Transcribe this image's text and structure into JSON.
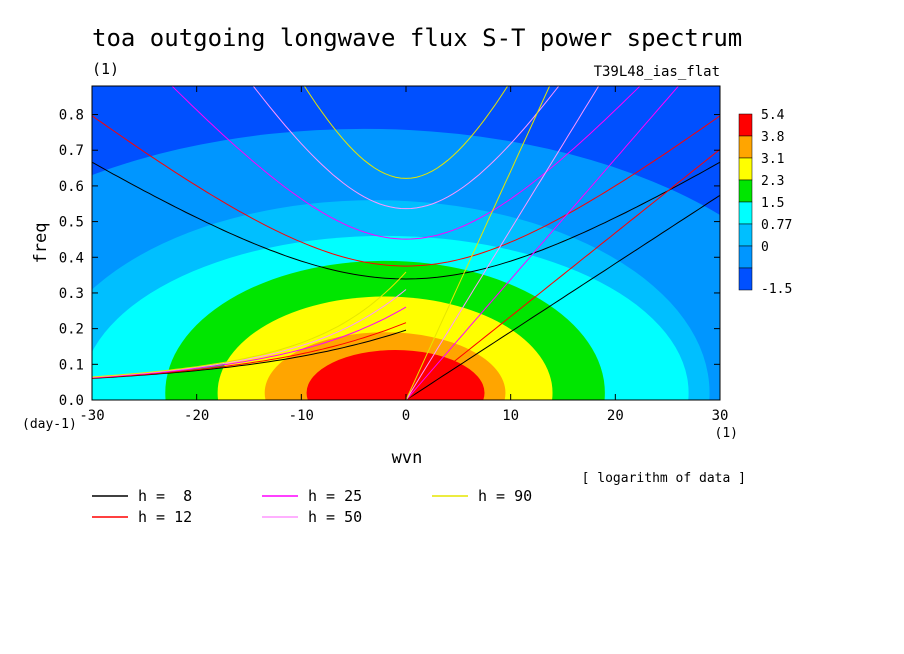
{
  "chart_data": {
    "type": "heatmap",
    "title": "toa outgoing longwave flux S-T power spectrum",
    "title_unit": "(1)",
    "subtitle": "T39L48_ias_flat",
    "xlabel": "wvn",
    "ylabel": "freq",
    "x_unit": "(1)",
    "y_unit": "(day-1)",
    "note": "[ logarithm of data ]",
    "xlim": [
      -30,
      30
    ],
    "ylim": [
      0,
      0.88
    ],
    "xticks": [
      -30,
      -20,
      -10,
      0,
      10,
      20,
      30
    ],
    "xtick_labels": [
      "-30",
      "-20",
      "-10",
      "0",
      "10",
      "20",
      "30"
    ],
    "yticks": [
      0,
      0.1,
      0.2,
      0.3,
      0.4,
      0.5,
      0.6,
      0.7,
      0.8
    ],
    "ytick_labels": [
      "0.0",
      "0.1",
      "0.2",
      "0.3",
      "0.4",
      "0.5",
      "0.6",
      "0.7",
      "0.8"
    ],
    "colorbar": {
      "levels": [
        "5.4",
        "3.8",
        "3.1",
        "2.3",
        "1.5",
        "0.77",
        "0",
        "-1.5"
      ],
      "colors": [
        "#ff0000",
        "#ffa500",
        "#ffff00",
        "#00e600",
        "#00ffff",
        "#00bfff",
        "#0096ff",
        "#0050ff"
      ]
    },
    "contour_peak": {
      "x": -2,
      "y": 0.02
    },
    "dispersion_curves": [
      {
        "label": "h =  8",
        "h": 8,
        "color": "#000000"
      },
      {
        "label": "h = 12",
        "h": 12,
        "color": "#ff0000"
      },
      {
        "label": "h = 25",
        "h": 25,
        "color": "#ff00ff"
      },
      {
        "label": "h = 50",
        "h": 50,
        "color": "#ff96ff"
      },
      {
        "label": "h = 90",
        "h": 90,
        "color": "#e6e600"
      }
    ]
  }
}
